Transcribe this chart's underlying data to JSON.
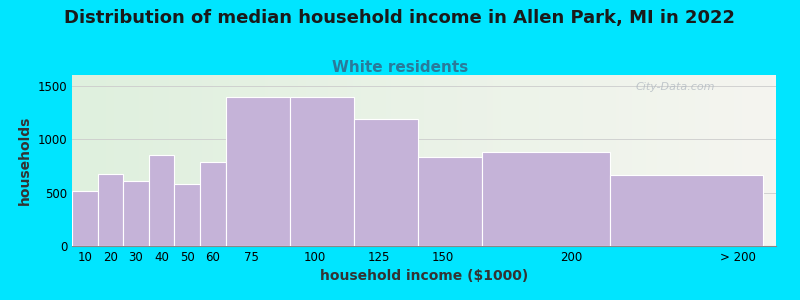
{
  "title": "Distribution of median household income in Allen Park, MI in 2022",
  "subtitle": "White residents",
  "xlabel": "household income ($1000)",
  "ylabel": "households",
  "bar_labels": [
    "10",
    "20",
    "30",
    "40",
    "50",
    "60",
    "75",
    "100",
    "125",
    "150",
    "200",
    "> 200"
  ],
  "bar_values": [
    510,
    670,
    610,
    850,
    580,
    790,
    1390,
    1390,
    1185,
    830,
    880,
    660
  ],
  "bar_lefts": [
    5,
    15,
    25,
    35,
    45,
    55,
    65,
    90,
    115,
    140,
    165,
    215
  ],
  "bar_widths": [
    10,
    10,
    10,
    10,
    10,
    10,
    25,
    25,
    25,
    25,
    50,
    60
  ],
  "tick_positions": [
    10,
    20,
    30,
    40,
    50,
    60,
    75,
    100,
    125,
    150,
    200,
    265
  ],
  "tick_labels": [
    "10",
    "20",
    "30",
    "40",
    "50",
    "60",
    "75",
    "100",
    "125",
    "150",
    "200",
    "> 200"
  ],
  "xlim": [
    5,
    280
  ],
  "yticks": [
    0,
    500,
    1000,
    1500
  ],
  "ymax": 1600,
  "bar_color": "#c5b3d8",
  "bar_edge_color": "#ffffff",
  "background_color": "#00e5ff",
  "title_fontsize": 13,
  "subtitle_fontsize": 11,
  "subtitle_color": "#2a7a9a",
  "axis_label_fontsize": 10,
  "tick_fontsize": 8.5,
  "watermark": "City-Data.com",
  "gradient_left": "#dff0de",
  "gradient_right": "#f5f5f0"
}
